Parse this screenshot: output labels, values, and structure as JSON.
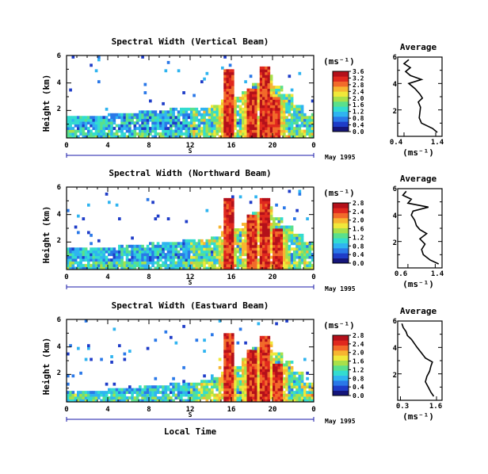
{
  "colors": {
    "scale": [
      "#15157a",
      "#1e3cc8",
      "#2a78e8",
      "#2fb4f0",
      "#33dcd0",
      "#5ae08c",
      "#a8e04a",
      "#f0e83a",
      "#f7b531",
      "#f26a2a",
      "#e0281e",
      "#b4101a"
    ],
    "axis": "#000000",
    "marker": "#1a1aa8"
  },
  "chart_data": [
    {
      "type": "heatmap",
      "title": "Spectral Width (Vertical Beam)",
      "ylabel": "Height (km)",
      "xlim": [
        0,
        24
      ],
      "ylim": [
        0,
        6
      ],
      "xticks": [
        "0",
        "4",
        "8",
        "12",
        "16",
        "20",
        "0"
      ],
      "yticks": [
        "2",
        "4",
        "6"
      ],
      "date_label": "May 1995",
      "marker_label": "S",
      "colorbar": {
        "unit": "(ms⁻¹)",
        "range": [
          0,
          3.6
        ],
        "ticks": [
          "0.0",
          "0.4",
          "0.8",
          "1.2",
          "1.6",
          "2.0",
          "2.4",
          "2.8",
          "3.2",
          "3.6"
        ]
      },
      "average": {
        "title": "Average",
        "xlabel": "(ms⁻¹)",
        "xticks": [
          "0.4",
          "1.4"
        ],
        "xlim": [
          0.2,
          1.6
        ],
        "yticks": [
          "2",
          "4",
          "6"
        ],
        "ylim": [
          0,
          6
        ],
        "height_km": [
          0.3,
          0.6,
          1.0,
          1.4,
          1.8,
          2.2,
          2.6,
          2.9,
          3.2,
          3.6,
          4.0,
          4.3,
          4.6,
          4.9,
          5.2,
          5.5,
          5.8
        ],
        "width": [
          1.45,
          1.3,
          0.95,
          0.88,
          0.9,
          0.92,
          0.85,
          0.98,
          0.9,
          0.75,
          0.55,
          0.95,
          0.6,
          0.45,
          0.6,
          0.4,
          0.55
        ]
      },
      "features": {
        "low_layer_top_km": [
          1.6,
          1.6,
          1.7,
          1.7,
          1.8,
          1.8,
          1.9,
          2.0,
          2.1,
          2.1,
          2.2,
          2.2,
          2.3,
          2.3,
          2.5,
          2.8,
          3.0,
          3.5,
          4.0,
          4.5,
          3.8,
          3.2,
          2.5,
          1.8
        ],
        "plumes_hr_km": [
          [
            15.7,
            5.0
          ],
          [
            18.0,
            3.6
          ],
          [
            19.3,
            5.3
          ],
          [
            20.3,
            3.0
          ]
        ]
      }
    },
    {
      "type": "heatmap",
      "title": "Spectral Width (Northward Beam)",
      "ylabel": "Height (km)",
      "xlim": [
        0,
        24
      ],
      "ylim": [
        0,
        6
      ],
      "xticks": [
        "0",
        "4",
        "8",
        "12",
        "16",
        "20",
        "0"
      ],
      "yticks": [
        "2",
        "4",
        "6"
      ],
      "date_label": "May 1995",
      "marker_label": "S",
      "colorbar": {
        "unit": "(ms⁻¹)",
        "range": [
          0,
          2.8
        ],
        "ticks": [
          "0.0",
          "0.4",
          "0.8",
          "1.2",
          "1.6",
          "2.0",
          "2.4",
          "2.8"
        ]
      },
      "average": {
        "title": "Average",
        "xlabel": "(ms⁻¹)",
        "xticks": [
          "0.6",
          "1.4"
        ],
        "xlim": [
          0.3,
          1.6
        ],
        "yticks": [
          "2",
          "4",
          "6"
        ],
        "ylim": [
          0,
          6
        ],
        "height_km": [
          0.3,
          0.6,
          1.0,
          1.4,
          1.8,
          2.2,
          2.6,
          2.9,
          3.2,
          3.6,
          4.0,
          4.3,
          4.6,
          4.9,
          5.2,
          5.5,
          5.8
        ],
        "width": [
          1.5,
          1.25,
          1.05,
          1.0,
          1.1,
          0.95,
          1.15,
          0.95,
          0.85,
          0.8,
          0.7,
          0.75,
          1.2,
          0.6,
          0.7,
          0.45,
          0.55
        ]
      },
      "features": {
        "low_layer_top_km": [
          1.6,
          1.6,
          1.6,
          1.7,
          1.7,
          1.8,
          1.8,
          1.9,
          2.0,
          2.0,
          2.1,
          2.2,
          2.3,
          2.3,
          2.4,
          2.8,
          3.0,
          3.5,
          4.2,
          4.6,
          3.8,
          3.3,
          2.6,
          2.0
        ],
        "plumes_hr_km": [
          [
            15.7,
            5.2
          ],
          [
            18.0,
            4.0
          ],
          [
            19.3,
            5.3
          ],
          [
            20.5,
            3.0
          ]
        ]
      }
    },
    {
      "type": "heatmap",
      "title": "Spectral Width (Eastward Beam)",
      "ylabel": "Height (km)",
      "xlabel": "Local Time",
      "xlim": [
        0,
        24
      ],
      "ylim": [
        0,
        6
      ],
      "xticks": [
        "0",
        "4",
        "8",
        "12",
        "16",
        "20",
        "0"
      ],
      "yticks": [
        "2",
        "4",
        "6"
      ],
      "date_label": "May 1995",
      "marker_label": "S",
      "colorbar": {
        "unit": "(ms⁻¹)",
        "range": [
          0,
          2.8
        ],
        "ticks": [
          "0.0",
          "0.4",
          "0.8",
          "1.2",
          "1.6",
          "2.0",
          "2.4",
          "2.8"
        ]
      },
      "average": {
        "title": "Average",
        "xlabel": "(ms⁻¹)",
        "xticks": [
          "0.3",
          "1.6"
        ],
        "xlim": [
          0.2,
          1.8
        ],
        "yticks": [
          "2",
          "4",
          "6"
        ],
        "ylim": [
          0,
          6
        ],
        "height_km": [
          0.3,
          0.6,
          1.0,
          1.4,
          1.8,
          2.2,
          2.6,
          2.9,
          3.2,
          3.6,
          4.0,
          4.3,
          4.6,
          4.9,
          5.2,
          5.5,
          5.8
        ],
        "width": [
          1.5,
          1.4,
          1.3,
          1.2,
          1.25,
          1.35,
          1.4,
          1.45,
          1.2,
          1.05,
          0.9,
          0.8,
          0.7,
          0.55,
          0.5,
          0.4,
          0.35
        ]
      },
      "features": {
        "low_layer_top_km": [
          0.8,
          0.8,
          0.9,
          0.9,
          1.0,
          1.0,
          1.1,
          1.2,
          1.3,
          1.3,
          1.4,
          1.4,
          1.5,
          1.6,
          1.8,
          2.2,
          2.6,
          3.2,
          4.0,
          4.5,
          3.6,
          3.0,
          2.2,
          1.5
        ],
        "plumes_hr_km": [
          [
            15.7,
            5.0
          ],
          [
            18.0,
            3.8
          ],
          [
            19.3,
            4.8
          ],
          [
            20.5,
            2.8
          ]
        ]
      }
    }
  ]
}
